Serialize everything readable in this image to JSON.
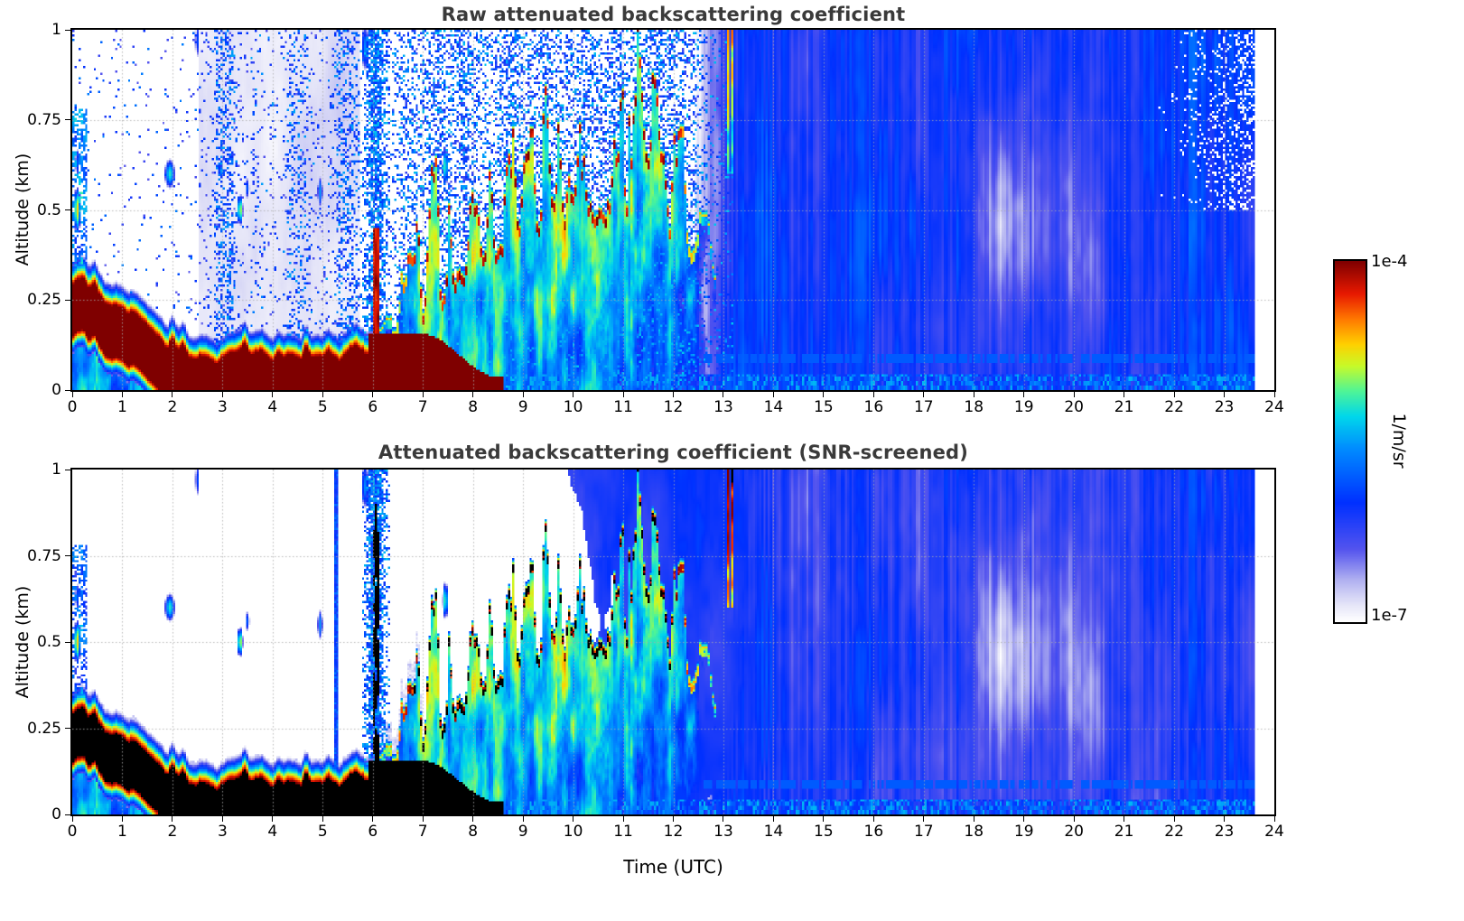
{
  "figure": {
    "background": "#ffffff",
    "frame_color": "#000000",
    "grid_color": "#aaaaaa",
    "title_color": "#3a3a3a",
    "tick_color": "#000000"
  },
  "colorbar": {
    "max_label": "1e-4",
    "min_label": "1e-7",
    "units_label": "1/m/sr",
    "scale": "log",
    "vmin_log10": -7,
    "vmax_log10": -4,
    "stops": [
      [
        0,
        255,
        255,
        255
      ],
      [
        0.05,
        228,
        228,
        248
      ],
      [
        0.12,
        172,
        172,
        240
      ],
      [
        0.2,
        84,
        84,
        238
      ],
      [
        0.33,
        0,
        48,
        255
      ],
      [
        0.48,
        0,
        140,
        255
      ],
      [
        0.57,
        0,
        215,
        235
      ],
      [
        0.64,
        80,
        245,
        150
      ],
      [
        0.71,
        200,
        250,
        40
      ],
      [
        0.77,
        255,
        208,
        0
      ],
      [
        0.84,
        255,
        120,
        0
      ],
      [
        0.91,
        232,
        25,
        0
      ],
      [
        1,
        127,
        0,
        0
      ]
    ]
  },
  "chart_data": [
    {
      "type": "heatmap",
      "panel": "raw",
      "title": "Raw attenuated backscattering coefficient",
      "xlabel": "",
      "ylabel": "Altitude (km)",
      "x_range": [
        0,
        24
      ],
      "y_range": [
        0,
        1
      ],
      "x_ticks": [
        0,
        1,
        2,
        3,
        4,
        5,
        6,
        7,
        8,
        9,
        10,
        11,
        12,
        13,
        14,
        15,
        16,
        17,
        18,
        19,
        20,
        21,
        22,
        23,
        24
      ],
      "y_ticks": [
        0,
        0.25,
        0.5,
        0.75,
        1
      ],
      "y_tick_labels": [
        "0",
        "0.25",
        "0.5",
        "0.75",
        "1"
      ],
      "grid": true,
      "value_units": "1/m/sr",
      "value_scale_log10_range": [
        -7,
        -4
      ],
      "data_end_utc": 23.62,
      "layer_top_height_km": [
        [
          0,
          0.3
        ],
        [
          0.5,
          0.27
        ],
        [
          1,
          0.22
        ],
        [
          1.5,
          0.16
        ],
        [
          2,
          0.12
        ],
        [
          2.5,
          0.09
        ],
        [
          3,
          0.095
        ],
        [
          3.5,
          0.105
        ],
        [
          4,
          0.1
        ],
        [
          4.5,
          0.095
        ],
        [
          5,
          0.09
        ],
        [
          5.5,
          0.085
        ],
        [
          5.8,
          0.11
        ],
        [
          6,
          0.12
        ],
        [
          6.5,
          0.16
        ],
        [
          7,
          0.2
        ],
        [
          7.5,
          0.26
        ],
        [
          8,
          0.31
        ],
        [
          8.5,
          0.36
        ],
        [
          9,
          0.41
        ],
        [
          9.5,
          0.46
        ],
        [
          10,
          0.43
        ],
        [
          10.5,
          0.49
        ],
        [
          11,
          0.46
        ],
        [
          11.5,
          0.52
        ],
        [
          12,
          0.42
        ],
        [
          12.5,
          0.34
        ],
        [
          13,
          0.26
        ],
        [
          13.6,
          0.12
        ],
        [
          14,
          0
        ],
        [
          24,
          0
        ]
      ],
      "point_blobs": [
        [
          0.1,
          0.5,
          0.06,
          0.05,
          -4.7
        ],
        [
          0.1,
          0.63,
          0.05,
          0.04,
          -5.8
        ],
        [
          1.95,
          0.6,
          0.09,
          0.035,
          -5.2
        ],
        [
          2.5,
          0.97,
          0.05,
          0.05,
          -5.9
        ],
        [
          3.35,
          0.5,
          0.05,
          0.035,
          -4.9
        ],
        [
          3.5,
          0.56,
          0.04,
          0.03,
          -5.8
        ],
        [
          4.95,
          0.55,
          0.05,
          0.04,
          -5.5
        ],
        [
          7.45,
          0.62,
          0.05,
          0.045,
          -5.1
        ],
        [
          5.85,
          0.95,
          0.08,
          0.06,
          -5.6
        ]
      ],
      "features": {
        "saturated_layer": "dark red saturated aerosol/fog layer 00-06 UTC descending from ~0.3 km to near surface by ~02 UTC",
        "convective_plumes": "rainbow-topped spiky plumes rising 06-12 UTC up to 0.5-0.9 km",
        "noise_speckle": "sparse blue noise speckle aloft before 06 UTC; faint lavender region ~02:30-05:45 UTC",
        "post_12utc": "widespread blue low-backscatter field after ~12 UTC with lighter patches near 18-20 UTC"
      }
    },
    {
      "type": "heatmap",
      "panel": "screened",
      "title": "Attenuated backscattering coefficient (SNR-screened)",
      "xlabel": "Time (UTC)",
      "ylabel": "Altitude (km)",
      "x_range": [
        0,
        24
      ],
      "y_range": [
        0,
        1
      ],
      "x_ticks": [
        0,
        1,
        2,
        3,
        4,
        5,
        6,
        7,
        8,
        9,
        10,
        11,
        12,
        13,
        14,
        15,
        16,
        17,
        18,
        19,
        20,
        21,
        22,
        23,
        24
      ],
      "y_ticks": [
        0,
        0.25,
        0.5,
        0.75,
        1
      ],
      "y_tick_labels": [
        "0",
        "0.25",
        "0.5",
        "0.75",
        "1"
      ],
      "grid": true,
      "value_units": "1/m/sr",
      "value_scale_log10_range": [
        -7,
        -4
      ],
      "data_end_utc": 23.62,
      "features": {
        "screening": "noise aloft before ~07 UTC removed (white background)",
        "saturation": "saturated layer and plume cores rendered black",
        "artifact_column": "narrow blue column near ~05:17 UTC spanning the full altitude range",
        "post_12utc": "blue low-backscatter field retained after ~12 UTC"
      }
    }
  ]
}
